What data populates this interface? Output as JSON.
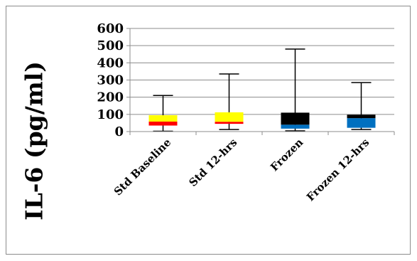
{
  "chart_data": {
    "type": "box",
    "ylabel": "IL-6 (pg/ml)",
    "xlabel": "",
    "ylim": [
      0,
      600
    ],
    "yticks": [
      "0",
      "100",
      "200",
      "300",
      "400",
      "500",
      "600"
    ],
    "grid": "horizontal",
    "categories": [
      "Std Baseline",
      "Std 12-hrs",
      "Frozen",
      "Frozen 12-hrs"
    ],
    "boxes": [
      {
        "category": "Std Baseline",
        "min": 2,
        "q1": 35,
        "median": 58,
        "q3": 95,
        "max": 210,
        "lower_color": "#ff0000",
        "upper_color": "#ffff00"
      },
      {
        "category": "Std 12-hrs",
        "min": 12,
        "q1": 45,
        "median": 57,
        "q3": 112,
        "max": 335,
        "lower_color": "#ff0000",
        "upper_color": "#ffff00"
      },
      {
        "category": "Frozen",
        "min": 4,
        "q1": 17,
        "median": 40,
        "q3": 110,
        "max": 480,
        "lower_color": "#0070c0",
        "upper_color": "#000000"
      },
      {
        "category": "Frozen 12-hrs",
        "min": 12,
        "q1": 22,
        "median": 78,
        "q3": 98,
        "max": 285,
        "lower_color": "#0070c0",
        "upper_color": "#000000"
      }
    ]
  }
}
